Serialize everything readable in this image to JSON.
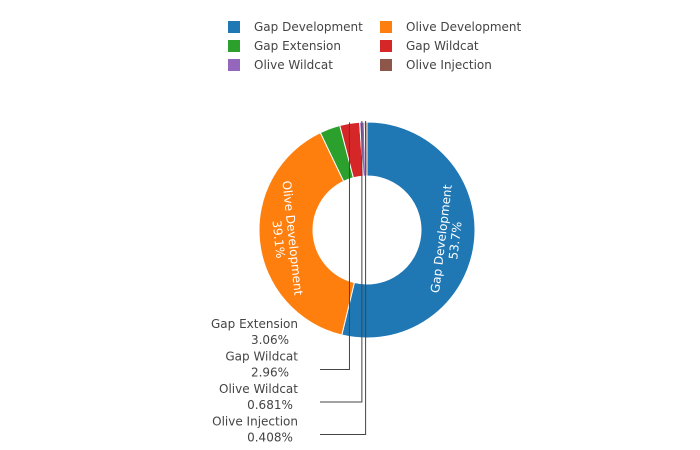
{
  "chart_data": {
    "type": "pie",
    "hole": 0.5,
    "legend_position": "top",
    "slices": [
      {
        "label": "Gap Development",
        "percent": 53.7,
        "percent_text": "53.7%",
        "color": "#1f77b4",
        "text_position": "inside"
      },
      {
        "label": "Olive Development",
        "percent": 39.1,
        "percent_text": "39.1%",
        "color": "#ff7f0e",
        "text_position": "inside"
      },
      {
        "label": "Gap Extension",
        "percent": 3.06,
        "percent_text": "3.06%",
        "color": "#2ca02c",
        "text_position": "outside"
      },
      {
        "label": "Gap Wildcat",
        "percent": 2.96,
        "percent_text": "2.96%",
        "color": "#d62728",
        "text_position": "outside"
      },
      {
        "label": "Olive Wildcat",
        "percent": 0.681,
        "percent_text": "0.681%",
        "color": "#9467bd",
        "text_position": "outside"
      },
      {
        "label": "Olive Injection",
        "percent": 0.408,
        "percent_text": "0.408%",
        "color": "#8c564b",
        "text_position": "outside"
      }
    ],
    "legend_order": [
      "Gap Development",
      "Olive Development",
      "Gap Extension",
      "Gap Wildcat",
      "Olive Wildcat",
      "Olive Injection"
    ]
  }
}
